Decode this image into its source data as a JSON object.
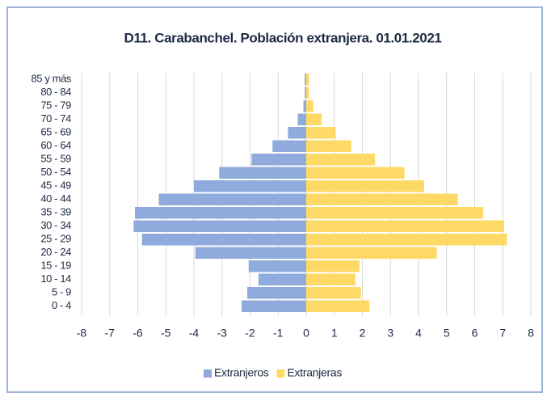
{
  "chart_data": {
    "type": "bar",
    "title": "D11. Carabanchel. Población extranjera. 01.01.2021",
    "categories": [
      "85 y más",
      "80 - 84",
      "75 - 79",
      "70 - 74",
      "65 - 69",
      "60 - 64",
      "55 - 59",
      "50 - 54",
      "45 - 49",
      "40 - 44",
      "35 - 39",
      "30 - 34",
      "25 - 29",
      "20 - 24",
      "15 - 19",
      "10 - 14",
      "5 - 9",
      "0 - 4"
    ],
    "series": [
      {
        "name": "Extranjeros",
        "color": "#8faadc",
        "values": [
          -0.05,
          -0.05,
          -0.1,
          -0.3,
          -0.65,
          -1.2,
          -1.95,
          -3.1,
          -4.0,
          -5.25,
          -6.1,
          -6.15,
          -5.85,
          -3.95,
          -2.05,
          -1.7,
          -2.1,
          -2.3
        ]
      },
      {
        "name": "Extranjeras",
        "color": "#ffd966",
        "values": [
          0.1,
          0.1,
          0.25,
          0.55,
          1.05,
          1.6,
          2.45,
          3.5,
          4.2,
          5.4,
          6.3,
          7.05,
          7.15,
          4.65,
          1.9,
          1.75,
          1.95,
          2.25
        ]
      }
    ],
    "xlim": [
      -8,
      8
    ],
    "xticks": [
      -8,
      -7,
      -6,
      -5,
      -4,
      -3,
      -2,
      -1,
      0,
      1,
      2,
      3,
      4,
      5,
      6,
      7,
      8
    ],
    "grid": true,
    "legend": "bottom"
  }
}
